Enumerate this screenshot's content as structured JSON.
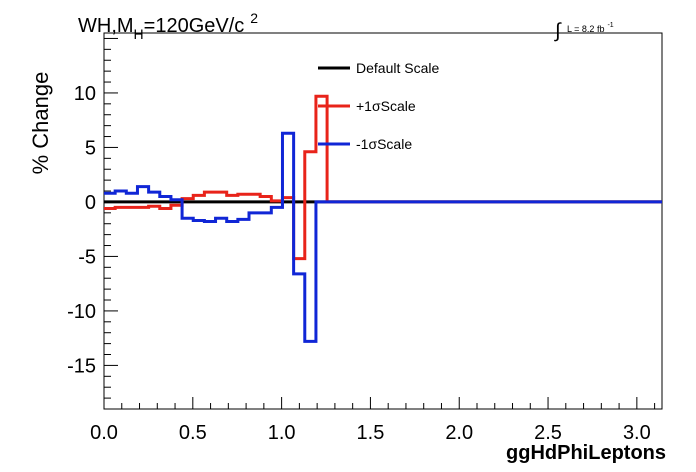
{
  "title": {
    "main": "WH,M",
    "sub": "H",
    "rest": "=120GeV/c",
    "sup": "2"
  },
  "lumi": {
    "text": "L = 8.2 fb",
    "sup": "-1"
  },
  "chart_data": {
    "type": "line",
    "xlabel": "ggHdPhiLeptons",
    "ylabel": "% Change",
    "xlim": [
      0.0,
      3.1416
    ],
    "ylim": [
      -19,
      15.5
    ],
    "x_ticks": [
      0.0,
      0.5,
      1.0,
      1.5,
      2.0,
      2.5,
      3.0
    ],
    "x_tick_labels": [
      "0.0",
      "0.5",
      "1.0",
      "1.5",
      "2.0",
      "2.5",
      "3.0"
    ],
    "y_ticks": [
      -15,
      -10,
      -5,
      0,
      5,
      10
    ],
    "y_tick_labels": [
      "-15",
      "-10",
      "-5",
      "0",
      "5",
      "10"
    ],
    "bin_width": 0.0628,
    "grid": false,
    "legend_position": "top-center",
    "series": [
      {
        "name": "Default Scale",
        "color": "#000000",
        "values": [
          0,
          0,
          0,
          0,
          0,
          0,
          0,
          0,
          0,
          0,
          0,
          0,
          0,
          0,
          0,
          0,
          0,
          0,
          0,
          0,
          0,
          0,
          0,
          0,
          0,
          0,
          0,
          0,
          0,
          0,
          0,
          0,
          0,
          0,
          0,
          0,
          0,
          0,
          0,
          0,
          0,
          0,
          0,
          0,
          0,
          0,
          0,
          0,
          0,
          0
        ]
      },
      {
        "name": "+1σScale",
        "color": "#e8231a",
        "values": [
          -0.6,
          -0.5,
          -0.5,
          -0.5,
          -0.4,
          -0.6,
          -0.3,
          0.3,
          0.6,
          0.9,
          0.9,
          0.6,
          0.7,
          0.7,
          0.5,
          0.1,
          0.4,
          -5.2,
          4.6,
          9.7,
          0,
          0,
          0,
          0,
          0,
          0,
          0,
          0,
          0,
          0,
          0,
          0,
          0,
          0,
          0,
          0,
          0,
          0,
          0,
          0,
          0,
          0,
          0,
          0,
          0,
          0,
          0,
          0,
          0,
          0
        ]
      },
      {
        "name": "-1σScale",
        "color": "#1026d6",
        "values": [
          0.8,
          1.0,
          0.8,
          1.4,
          0.9,
          0.5,
          0.2,
          -1.5,
          -1.7,
          -1.8,
          -1.5,
          -1.8,
          -1.6,
          -1.0,
          -1.0,
          -0.5,
          6.3,
          -6.6,
          -12.8,
          0,
          0,
          0,
          0,
          0,
          0,
          0,
          0,
          0,
          0,
          0,
          0,
          0,
          0,
          0,
          0,
          0,
          0,
          0,
          0,
          0,
          0,
          0,
          0,
          0,
          0,
          0,
          0,
          0,
          0,
          0
        ]
      }
    ]
  }
}
